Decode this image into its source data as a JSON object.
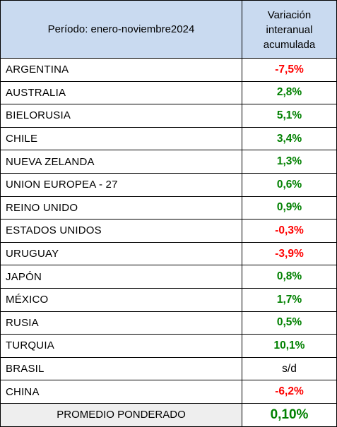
{
  "header": {
    "period_label": "Período: enero-noviembre2024",
    "variation_lines": [
      "Variación",
      "interanual",
      "acumulada"
    ]
  },
  "rows": [
    {
      "country": "ARGENTINA",
      "value": "-7,5%",
      "status": "neg"
    },
    {
      "country": "AUSTRALIA",
      "value": "2,8%",
      "status": "pos"
    },
    {
      "country": "BIELORUSIA",
      "value": "5,1%",
      "status": "pos"
    },
    {
      "country": "CHILE",
      "value": "3,4%",
      "status": "pos"
    },
    {
      "country": "NUEVA ZELANDA",
      "value": "1,3%",
      "status": "pos"
    },
    {
      "country": "UNION EUROPEA - 27",
      "value": "0,6%",
      "status": "pos"
    },
    {
      "country": "REINO UNIDO",
      "value": "0,9%",
      "status": "pos"
    },
    {
      "country": "ESTADOS UNIDOS",
      "value": "-0,3%",
      "status": "neg"
    },
    {
      "country": "URUGUAY",
      "value": "-3,9%",
      "status": "neg"
    },
    {
      "country": "JAPÓN",
      "value": "0,8%",
      "status": "pos"
    },
    {
      "country": "MÉXICO",
      "value": "1,7%",
      "status": "pos"
    },
    {
      "country": "RUSIA",
      "value": "0,5%",
      "status": "pos"
    },
    {
      "country": "TURQUIA",
      "value": "10,1%",
      "status": "pos"
    },
    {
      "country": "BRASIL",
      "value": "s/d",
      "status": "na"
    },
    {
      "country": "CHINA",
      "value": "-6,2%",
      "status": "neg"
    }
  ],
  "footer": {
    "label": "PROMEDIO PONDERADO",
    "value": "0,10%"
  },
  "colors": {
    "header_bg": "#c9daf0",
    "positive": "#008000",
    "negative": "#ff0000",
    "footer_bg": "#eeeeee"
  }
}
